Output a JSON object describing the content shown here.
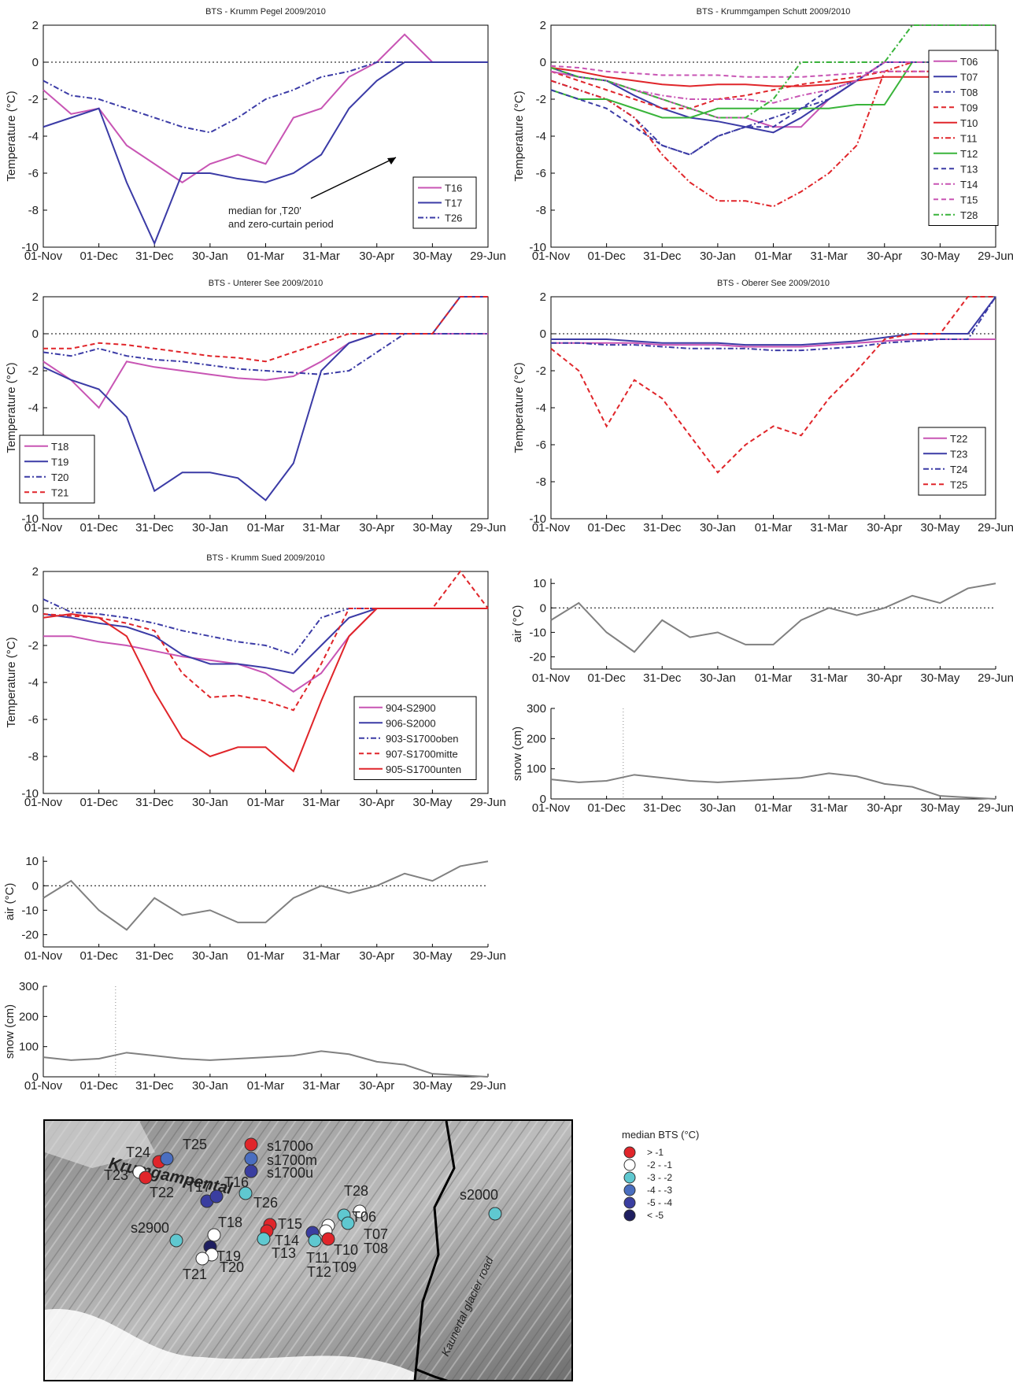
{
  "x_ticks": [
    "01-Nov",
    "01-Dec",
    "31-Dec",
    "30-Jan",
    "01-Mar",
    "31-Mar",
    "30-Apr",
    "30-May",
    "29-Jun"
  ],
  "colors": {
    "magenta": "#c855b4",
    "blue": "#3b3ba6",
    "red": "#e0252a",
    "green": "#39b43a",
    "gray": "#808080"
  },
  "chart_data": [
    {
      "type": "line",
      "title": "BTS - Krumm Pegel 2009/2010",
      "ylabel": "Temperature (°C)",
      "x": [
        "01-Nov",
        "15-Nov",
        "01-Dec",
        "15-Dec",
        "31-Dec",
        "15-Jan",
        "30-Jan",
        "15-Feb",
        "01-Mar",
        "15-Mar",
        "31-Mar",
        "15-Apr",
        "30-Apr",
        "15-May",
        "30-May",
        "15-Jun",
        "29-Jun"
      ],
      "ylim": [
        -10,
        2
      ],
      "legend": "lower-right",
      "series": [
        {
          "name": "T16",
          "values": [
            -1.5,
            -2.8,
            -2.5,
            -4.5,
            -5.5,
            -6.5,
            -5.5,
            -5.0,
            -5.5,
            -3.0,
            -2.5,
            -0.8,
            0,
            1.5,
            0,
            0,
            0
          ]
        },
        {
          "name": "T17",
          "values": [
            -3.5,
            -3.0,
            -2.5,
            -6.5,
            -9.8,
            -6.0,
            -6.0,
            -6.3,
            -6.5,
            -6.0,
            -5.0,
            -2.5,
            -1.0,
            0,
            0,
            0,
            0
          ]
        },
        {
          "name": "T26",
          "values": [
            -1.0,
            -1.8,
            -2.0,
            -2.5,
            -3.0,
            -3.5,
            -3.8,
            -3.0,
            -2.0,
            -1.5,
            -0.8,
            -0.5,
            0,
            0,
            0,
            0,
            0
          ]
        }
      ],
      "annotation": "median for ‚T20'\nand zero-curtain period"
    },
    {
      "type": "line",
      "title": "BTS - Krummgampen Schutt 2009/2010",
      "ylabel": "Temperature (°C)",
      "x": [
        "01-Nov",
        "15-Nov",
        "01-Dec",
        "15-Dec",
        "31-Dec",
        "15-Jan",
        "30-Jan",
        "15-Feb",
        "01-Mar",
        "15-Mar",
        "31-Mar",
        "15-Apr",
        "30-Apr",
        "15-May",
        "30-May",
        "15-Jun",
        "29-Jun"
      ],
      "ylim": [
        -10,
        2
      ],
      "legend": "right",
      "series": [
        {
          "name": "T06",
          "values": [
            -0.5,
            -0.8,
            -1.0,
            -1.5,
            -2.0,
            -2.5,
            -3.0,
            -3.0,
            -3.5,
            -3.5,
            -2.0,
            -1.0,
            0,
            0,
            0,
            0,
            0
          ]
        },
        {
          "name": "T07",
          "values": [
            -0.3,
            -0.8,
            -1.0,
            -1.8,
            -2.5,
            -3.0,
            -3.2,
            -3.5,
            -3.8,
            -3.0,
            -2.0,
            -1.0,
            0,
            0,
            0,
            0,
            0
          ]
        },
        {
          "name": "T08",
          "values": [
            -1.0,
            -1.5,
            -2.0,
            -3.0,
            -4.5,
            -5.0,
            -4.0,
            -3.5,
            -3.0,
            -2.5,
            -2.0,
            -1.0,
            0,
            0,
            0,
            0,
            0
          ]
        },
        {
          "name": "T09",
          "values": [
            -0.5,
            -1.0,
            -1.5,
            -2.0,
            -2.5,
            -2.5,
            -2.0,
            -1.8,
            -1.5,
            -1.2,
            -1.0,
            -0.8,
            -0.5,
            -0.5,
            -0.5,
            -0.5,
            -0.5
          ]
        },
        {
          "name": "T10",
          "values": [
            -0.3,
            -0.5,
            -0.8,
            -1.0,
            -1.2,
            -1.3,
            -1.2,
            -1.2,
            -1.3,
            -1.3,
            -1.2,
            -1.0,
            -0.8,
            -0.8,
            -0.8,
            -0.8,
            -0.8
          ]
        },
        {
          "name": "T11",
          "values": [
            -1.0,
            -1.5,
            -2.0,
            -3.0,
            -5.0,
            -6.5,
            -7.5,
            -7.5,
            -7.8,
            -7.0,
            -6.0,
            -4.5,
            -0.5,
            0,
            0,
            0,
            0
          ]
        },
        {
          "name": "T12",
          "values": [
            -1.5,
            -2.0,
            -2.0,
            -2.5,
            -3.0,
            -3.0,
            -2.5,
            -2.5,
            -2.5,
            -2.5,
            -2.5,
            -2.3,
            -2.3,
            0,
            0,
            0,
            0
          ]
        },
        {
          "name": "T13",
          "values": [
            -1.5,
            -2.0,
            -2.5,
            -3.5,
            -4.5,
            -5.0,
            -4.0,
            -3.5,
            -3.5,
            -2.5,
            -1.5,
            -1.0,
            0,
            0,
            0,
            0,
            0
          ]
        },
        {
          "name": "T14",
          "values": [
            -0.5,
            -0.8,
            -1.0,
            -1.5,
            -1.8,
            -2.0,
            -2.0,
            -2.0,
            -2.2,
            -1.8,
            -1.5,
            -1.0,
            0,
            0,
            0,
            0,
            0
          ]
        },
        {
          "name": "T15",
          "values": [
            -0.2,
            -0.3,
            -0.5,
            -0.6,
            -0.7,
            -0.7,
            -0.7,
            -0.8,
            -0.8,
            -0.8,
            -0.7,
            -0.6,
            -0.5,
            -0.5,
            -0.5,
            -0.5,
            -0.5
          ]
        },
        {
          "name": "T28",
          "values": [
            -0.3,
            -0.8,
            -1.0,
            -1.5,
            -2.0,
            -2.5,
            -3.0,
            -3.0,
            -2.0,
            0,
            0,
            0,
            0,
            2,
            2,
            2,
            2
          ]
        }
      ]
    },
    {
      "type": "line",
      "title": "BTS - Unterer See 2009/2010",
      "ylabel": "Temperature (°C)",
      "x": [
        "01-Nov",
        "15-Nov",
        "01-Dec",
        "15-Dec",
        "31-Dec",
        "15-Jan",
        "30-Jan",
        "15-Feb",
        "01-Mar",
        "15-Mar",
        "31-Mar",
        "15-Apr",
        "30-Apr",
        "15-May",
        "30-May",
        "15-Jun",
        "29-Jun"
      ],
      "ylim": [
        -10,
        2
      ],
      "legend": "lower-left",
      "series": [
        {
          "name": "T18",
          "values": [
            -1.5,
            -2.5,
            -4.0,
            -1.5,
            -1.8,
            -2.0,
            -2.2,
            -2.4,
            -2.5,
            -2.3,
            -1.5,
            -0.5,
            0,
            0,
            0,
            0,
            0
          ]
        },
        {
          "name": "T19",
          "values": [
            -1.8,
            -2.5,
            -3.0,
            -4.5,
            -8.5,
            -7.5,
            -7.5,
            -7.8,
            -9.0,
            -7.0,
            -2.0,
            -0.5,
            0,
            0,
            0,
            2,
            2
          ]
        },
        {
          "name": "T20",
          "values": [
            -1.0,
            -1.2,
            -0.8,
            -1.2,
            -1.4,
            -1.5,
            -1.7,
            -1.9,
            -2.0,
            -2.1,
            -2.2,
            -2.0,
            -1.0,
            0,
            0,
            0,
            0
          ]
        },
        {
          "name": "T21",
          "values": [
            -0.8,
            -0.8,
            -0.5,
            -0.6,
            -0.8,
            -1.0,
            -1.2,
            -1.3,
            -1.5,
            -1.0,
            -0.5,
            0,
            0,
            0,
            0,
            2,
            2
          ]
        }
      ]
    },
    {
      "type": "line",
      "title": "BTS - Oberer See 2009/2010",
      "ylabel": "Temperature (°C)",
      "x": [
        "01-Nov",
        "15-Nov",
        "01-Dec",
        "15-Dec",
        "31-Dec",
        "15-Jan",
        "30-Jan",
        "15-Feb",
        "01-Mar",
        "15-Mar",
        "31-Mar",
        "15-Apr",
        "30-Apr",
        "15-May",
        "30-May",
        "15-Jun",
        "29-Jun"
      ],
      "ylim": [
        -10,
        2
      ],
      "legend": "lower-right",
      "series": [
        {
          "name": "T22",
          "values": [
            -0.5,
            -0.5,
            -0.5,
            -0.5,
            -0.6,
            -0.6,
            -0.6,
            -0.7,
            -0.7,
            -0.7,
            -0.6,
            -0.5,
            -0.4,
            -0.3,
            -0.3,
            -0.3,
            -0.3
          ]
        },
        {
          "name": "T23",
          "values": [
            -0.3,
            -0.3,
            -0.3,
            -0.4,
            -0.5,
            -0.5,
            -0.5,
            -0.6,
            -0.6,
            -0.6,
            -0.5,
            -0.4,
            -0.2,
            0,
            0,
            0,
            2
          ]
        },
        {
          "name": "T24",
          "values": [
            -0.5,
            -0.5,
            -0.6,
            -0.6,
            -0.7,
            -0.8,
            -0.8,
            -0.8,
            -0.9,
            -0.9,
            -0.8,
            -0.7,
            -0.5,
            -0.4,
            -0.3,
            -0.3,
            2
          ]
        },
        {
          "name": "T25",
          "values": [
            -0.8,
            -2.0,
            -5.0,
            -2.5,
            -3.5,
            -5.5,
            -7.5,
            -6.0,
            -5.0,
            -5.5,
            -3.5,
            -2.0,
            -0.3,
            0,
            0,
            2,
            2
          ]
        }
      ]
    },
    {
      "type": "line",
      "title": "BTS - Krumm Sued 2009/2010",
      "ylabel": "Temperature (°C)",
      "x": [
        "01-Nov",
        "15-Nov",
        "01-Dec",
        "15-Dec",
        "31-Dec",
        "15-Jan",
        "30-Jan",
        "15-Feb",
        "01-Mar",
        "15-Mar",
        "31-Mar",
        "15-Apr",
        "30-Apr",
        "15-May",
        "30-May",
        "15-Jun",
        "29-Jun"
      ],
      "ylim": [
        -10,
        2
      ],
      "legend": "lower-right",
      "series": [
        {
          "name": "904-S2900",
          "values": [
            -1.5,
            -1.5,
            -1.8,
            -2.0,
            -2.3,
            -2.6,
            -2.8,
            -3.0,
            -3.5,
            -4.5,
            -3.5,
            -1.5,
            0,
            0,
            0,
            0,
            0
          ]
        },
        {
          "name": "906-S2000",
          "values": [
            -0.3,
            -0.5,
            -0.8,
            -1.0,
            -1.5,
            -2.5,
            -3.0,
            -3.0,
            -3.2,
            -3.5,
            -2.0,
            -0.5,
            0,
            0,
            0,
            0,
            0
          ]
        },
        {
          "name": "903-S1700oben",
          "values": [
            0.5,
            -0.2,
            -0.3,
            -0.5,
            -0.8,
            -1.2,
            -1.5,
            -1.8,
            -2.0,
            -2.5,
            -0.5,
            0,
            0,
            0,
            0,
            0,
            0
          ]
        },
        {
          "name": "907-S1700mitte",
          "values": [
            -0.3,
            -0.4,
            -0.5,
            -0.8,
            -1.2,
            -3.5,
            -4.8,
            -4.7,
            -5.0,
            -5.5,
            -3.0,
            0,
            0,
            0,
            0,
            2,
            0
          ]
        },
        {
          "name": "905-S1700unten",
          "values": [
            -0.5,
            -0.3,
            -0.5,
            -1.5,
            -4.5,
            -7.0,
            -8.0,
            -7.5,
            -7.5,
            -8.8,
            -5.0,
            -1.5,
            0,
            0,
            0,
            0,
            0
          ]
        }
      ]
    },
    {
      "type": "line",
      "ylabel": "air (°C)",
      "x": [
        "01-Nov",
        "15-Nov",
        "01-Dec",
        "15-Dec",
        "31-Dec",
        "15-Jan",
        "30-Jan",
        "15-Feb",
        "01-Mar",
        "15-Mar",
        "31-Mar",
        "15-Apr",
        "30-Apr",
        "15-May",
        "30-May",
        "15-Jun",
        "29-Jun"
      ],
      "ylim": [
        -25,
        12
      ],
      "values": [
        -5,
        2,
        -10,
        -18,
        -5,
        -12,
        -10,
        -15,
        -15,
        -5,
        0,
        -3,
        0,
        5,
        2,
        8,
        10
      ]
    },
    {
      "type": "line",
      "ylabel": "snow (cm)",
      "x": [
        "01-Nov",
        "15-Nov",
        "01-Dec",
        "15-Dec",
        "31-Dec",
        "15-Jan",
        "30-Jan",
        "15-Feb",
        "01-Mar",
        "15-Mar",
        "31-Mar",
        "15-Apr",
        "30-Apr",
        "15-May",
        "30-May",
        "15-Jun",
        "29-Jun"
      ],
      "ylim": [
        0,
        300
      ],
      "values": [
        65,
        55,
        60,
        80,
        70,
        60,
        55,
        60,
        65,
        70,
        85,
        75,
        50,
        40,
        10,
        5,
        0
      ]
    },
    {
      "type": "line",
      "ylabel": "air (°C)",
      "x": [
        "01-Nov",
        "15-Nov",
        "01-Dec",
        "15-Dec",
        "31-Dec",
        "15-Jan",
        "30-Jan",
        "15-Feb",
        "01-Mar",
        "15-Mar",
        "31-Mar",
        "15-Apr",
        "30-Apr",
        "15-May",
        "30-May",
        "15-Jun",
        "29-Jun"
      ],
      "ylim": [
        -25,
        12
      ],
      "values": [
        -5,
        2,
        -10,
        -18,
        -5,
        -12,
        -10,
        -15,
        -15,
        -5,
        0,
        -3,
        0,
        5,
        2,
        8,
        10
      ]
    },
    {
      "type": "line",
      "ylabel": "snow (cm)",
      "x": [
        "01-Nov",
        "15-Nov",
        "01-Dec",
        "15-Dec",
        "31-Dec",
        "15-Jan",
        "30-Jan",
        "15-Feb",
        "01-Mar",
        "15-Mar",
        "31-Mar",
        "15-Apr",
        "30-Apr",
        "15-May",
        "30-May",
        "15-Jun",
        "29-Jun"
      ],
      "ylim": [
        0,
        300
      ],
      "values": [
        65,
        55,
        60,
        80,
        70,
        60,
        55,
        60,
        65,
        70,
        85,
        75,
        50,
        40,
        10,
        5,
        0
      ]
    }
  ],
  "map": {
    "valley_label": "Krumgampental",
    "road_label": "Kaunertal glacier road",
    "points": [
      {
        "label": "T24",
        "class": "> -1"
      },
      {
        "label": "T25",
        "class": "-4 - -3"
      },
      {
        "label": "T23",
        "class": "-2 - -1"
      },
      {
        "label": "T22",
        "class": "> -1"
      },
      {
        "label": "s1700o",
        "class": "> -1"
      },
      {
        "label": "s1700m",
        "class": "-4 - -3"
      },
      {
        "label": "s1700u",
        "class": "-5 - -4"
      },
      {
        "label": "T17",
        "class": "-5 - -4"
      },
      {
        "label": "T16",
        "class": "-5 - -4"
      },
      {
        "label": "T26",
        "class": "-3 - -2"
      },
      {
        "label": "T18",
        "class": "-2 - -1"
      },
      {
        "label": "T19",
        "class": "< -5"
      },
      {
        "label": "T20",
        "class": "-2 - -1"
      },
      {
        "label": "T21",
        "class": "-2 - -1"
      },
      {
        "label": "s2900",
        "class": "-3 - -2"
      },
      {
        "label": "T15",
        "class": "> -1"
      },
      {
        "label": "T14",
        "class": "> -1"
      },
      {
        "label": "T13",
        "class": "-3 - -2"
      },
      {
        "label": "T28",
        "class": "-2 - -1"
      },
      {
        "label": "T06",
        "class": "-3 - -2"
      },
      {
        "label": "T07",
        "class": "-3 - -2"
      },
      {
        "label": "T08",
        "class": "-2 - -1"
      },
      {
        "label": "T10",
        "class": "-2 - -1"
      },
      {
        "label": "T11",
        "class": "-5 - -4"
      },
      {
        "label": "T12",
        "class": "-3 - -2"
      },
      {
        "label": "T09",
        "class": "> -1"
      },
      {
        "label": "s2000",
        "class": "-3 - -2"
      }
    ]
  },
  "legend": {
    "title": "median BTS (°C)",
    "items": [
      {
        "label": ">  -1",
        "color": "#e0252a"
      },
      {
        "label": "-2  -  -1",
        "color": "#ffffff"
      },
      {
        "label": "-3  -  -2",
        "color": "#5fc8d0"
      },
      {
        "label": "-4  -  -3",
        "color": "#4a6ec0"
      },
      {
        "label": "-5  -  -4",
        "color": "#3a3ea0"
      },
      {
        "label": "<  -5",
        "color": "#1e1e60"
      }
    ]
  }
}
